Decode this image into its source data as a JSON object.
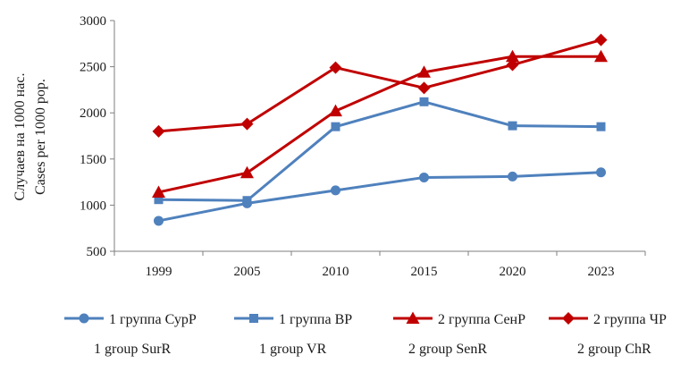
{
  "chart_data": {
    "type": "line",
    "title": "",
    "ylabel_ru": "Случаев на 1000 нас.",
    "ylabel_en": "Cases per 1000 pop.",
    "xlabel": "",
    "categories": [
      "1999",
      "2005",
      "2010",
      "2015",
      "2020",
      "2023"
    ],
    "ylim": [
      500,
      3000
    ],
    "yticks": [
      500,
      1000,
      1500,
      2000,
      2500,
      3000
    ],
    "grid": false,
    "legend_position": "bottom",
    "series": [
      {
        "name_ru": "1 группа СурР",
        "name_en": "1 group SurR",
        "color": "#4f81bd",
        "marker": "circle",
        "values": [
          830,
          1020,
          1160,
          1300,
          1310,
          1355
        ]
      },
      {
        "name_ru": "1 группа ВР",
        "name_en": "1 group VR",
        "color": "#4f81bd",
        "marker": "square",
        "values": [
          1060,
          1050,
          1850,
          2120,
          1860,
          1850
        ]
      },
      {
        "name_ru": "2 группа СенР",
        "name_en": "2 group SenR",
        "color": "#c00000",
        "marker": "triangle",
        "values": [
          1140,
          1350,
          2020,
          2440,
          2610,
          2610
        ]
      },
      {
        "name_ru": "2 группа ЧР",
        "name_en": "2 group ChR",
        "color": "#c00000",
        "marker": "diamond",
        "values": [
          1800,
          1880,
          2490,
          2270,
          2520,
          2790
        ]
      }
    ]
  }
}
